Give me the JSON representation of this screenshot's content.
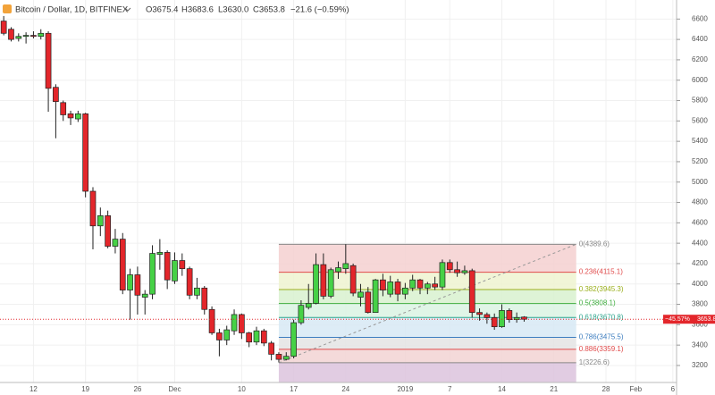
{
  "chart_data": {
    "type": "candlestick",
    "title": "Bitcoin / Dollar, 1D, BITFINEX",
    "header_values": [
      "O3675.4",
      "H3683.6",
      "L3630.0",
      "C3653.8",
      "−21.6 (−0.59%)"
    ],
    "categories": [
      null,
      null,
      null,
      null,
      "12",
      null,
      null,
      null,
      null,
      null,
      null,
      "19",
      null,
      null,
      null,
      null,
      null,
      null,
      "26",
      null,
      null,
      null,
      null,
      "Dec",
      null,
      null,
      null,
      null,
      null,
      null,
      null,
      null,
      "10",
      null,
      null,
      null,
      null,
      null,
      null,
      "17",
      null,
      null,
      null,
      null,
      null,
      null,
      "24",
      null,
      null,
      null,
      null,
      null,
      null,
      null,
      "2019",
      null,
      null,
      null,
      null,
      null,
      "7",
      null,
      null,
      null,
      null,
      null,
      null,
      "14",
      null,
      null,
      null,
      null,
      null,
      null,
      "21",
      null,
      null,
      null,
      null,
      null,
      null,
      "28",
      null,
      null,
      null,
      "Feb",
      null,
      null,
      null,
      null,
      "6"
    ],
    "open": [
      6580,
      6500,
      6410,
      6430,
      6440,
      6430,
      6460,
      5930,
      5780,
      5670,
      5620,
      5670,
      4910,
      4570,
      4670,
      4370,
      4440,
      3940,
      4090,
      3870,
      3900,
      4290,
      4310,
      4030,
      4230,
      4150,
      3890,
      3960,
      3750,
      3520,
      3450,
      3540,
      3700,
      3520,
      3430,
      3540,
      3420,
      3310,
      3260,
      3290,
      3620,
      3770,
      3810,
      4190,
      3880,
      4120,
      4150,
      4180,
      3870,
      3920,
      3720,
      4040,
      3900,
      4020,
      3900,
      3960,
      4040,
      3960,
      4000,
      3970,
      4210,
      4140,
      4110,
      4130,
      3720,
      3700,
      3670,
      3580,
      3740,
      3650,
      3675.4,
      null,
      null,
      null,
      null,
      null,
      null,
      null,
      null,
      null,
      null,
      null,
      null,
      null,
      null,
      null,
      null,
      null,
      null,
      null,
      null
    ],
    "high": [
      6630,
      6520,
      6460,
      6470,
      6480,
      6500,
      6480,
      5960,
      5800,
      5700,
      5700,
      5680,
      4950,
      4750,
      4720,
      4540,
      4500,
      4150,
      4170,
      3940,
      4380,
      4440,
      4330,
      4310,
      4300,
      4170,
      4060,
      3980,
      3780,
      3560,
      3590,
      3750,
      3710,
      3530,
      3580,
      3560,
      3440,
      3330,
      3330,
      3650,
      3840,
      4000,
      4300,
      4300,
      4160,
      4220,
      4390,
      4200,
      4000,
      3970,
      4050,
      4100,
      4080,
      4050,
      4010,
      4090,
      4050,
      4020,
      4070,
      4240,
      4240,
      4220,
      4180,
      4150,
      3760,
      3720,
      3710,
      3800,
      3760,
      3720,
      3683.6,
      null,
      null,
      null,
      null,
      null,
      null,
      null,
      null,
      null,
      null,
      null,
      null,
      null,
      null,
      null,
      null,
      null,
      null,
      null,
      null
    ],
    "low": [
      6440,
      6380,
      6380,
      6360,
      6410,
      6400,
      5690,
      5430,
      5600,
      5560,
      5590,
      4850,
      4340,
      4470,
      4350,
      4300,
      3900,
      3650,
      3700,
      3700,
      3850,
      4140,
      3950,
      4000,
      4080,
      3850,
      3850,
      3700,
      3500,
      3290,
      3400,
      3500,
      3460,
      3380,
      3400,
      3390,
      3250,
      3230,
      3250,
      3270,
      3600,
      3750,
      3800,
      3850,
      3860,
      4050,
      4100,
      3880,
      3780,
      3710,
      3720,
      3880,
      3870,
      3830,
      3850,
      3930,
      3900,
      3900,
      3940,
      3940,
      4110,
      4070,
      4090,
      3670,
      3640,
      3610,
      3550,
      3570,
      3620,
      3620,
      3630.0,
      null,
      null,
      null,
      null,
      null,
      null,
      null,
      null,
      null,
      null,
      null,
      null,
      null,
      null,
      null,
      null,
      null,
      null,
      null,
      null
    ],
    "close": [
      6460,
      6400,
      6430,
      6440,
      6430,
      6460,
      5920,
      5790,
      5660,
      5630,
      5670,
      4910,
      4570,
      4670,
      4370,
      4440,
      3940,
      4090,
      3890,
      3900,
      4300,
      4310,
      4040,
      4230,
      4150,
      3890,
      3960,
      3750,
      3520,
      3450,
      3550,
      3700,
      3520,
      3430,
      3540,
      3420,
      3310,
      3260,
      3290,
      3620,
      3790,
      3810,
      4190,
      3880,
      4140,
      4160,
      4200,
      3910,
      3920,
      3720,
      4040,
      3940,
      4020,
      3900,
      3960,
      4040,
      3960,
      4000,
      3970,
      4210,
      4140,
      4110,
      4130,
      3720,
      3700,
      3670,
      3580,
      3740,
      3650,
      3670,
      3653.8,
      null,
      null,
      null,
      null,
      null,
      null,
      null,
      null,
      null,
      null,
      null,
      null,
      null,
      null,
      null,
      null,
      null,
      null,
      null,
      null
    ],
    "up_color": "#46d146",
    "down_color": "#e3262b",
    "ylim": [
      3033,
      6787
    ],
    "yticks": [
      3200,
      3400,
      3600,
      3800,
      4000,
      4200,
      4400,
      4600,
      4800,
      5000,
      5200,
      5400,
      5600,
      5800,
      6000,
      6200,
      6400,
      6600
    ],
    "last_price": {
      "value": 3653.8,
      "label": "3653.8",
      "change": "−45.57%"
    },
    "fibonacci": {
      "start": 37,
      "end": 77,
      "levels": [
        {
          "value": 4389.6,
          "label": "0(4389.6)",
          "color": "#888888",
          "fill": "#f5d0d0"
        },
        {
          "value": 4115.1,
          "label": "0.236(4115.1)",
          "color": "#e04b4b",
          "fill": "#eef3d0"
        },
        {
          "value": 3945.3,
          "label": "0.382(3945.3)",
          "color": "#9aaf1c",
          "fill": "#d8f1cf"
        },
        {
          "value": 3808.1,
          "label": "0.5(3808.1)",
          "color": "#3fae3f",
          "fill": "#dbf3e3"
        },
        {
          "value": 3670.8,
          "label": "0.618(3670.8)",
          "color": "#2ca58d",
          "fill": "#d7e9f4"
        },
        {
          "value": 3475.5,
          "label": "0.786(3475.5)",
          "color": "#3d7dbf",
          "fill": "#e4e4e4"
        },
        {
          "value": 3359.1,
          "label": "0.886(3359.1)",
          "color": "#e04b4b",
          "fill": "#f2d3d3"
        },
        {
          "value": 3226.6,
          "label": "1(3226.6)",
          "color": "#888888",
          "fill": "#dcc3dd"
        }
      ]
    }
  }
}
